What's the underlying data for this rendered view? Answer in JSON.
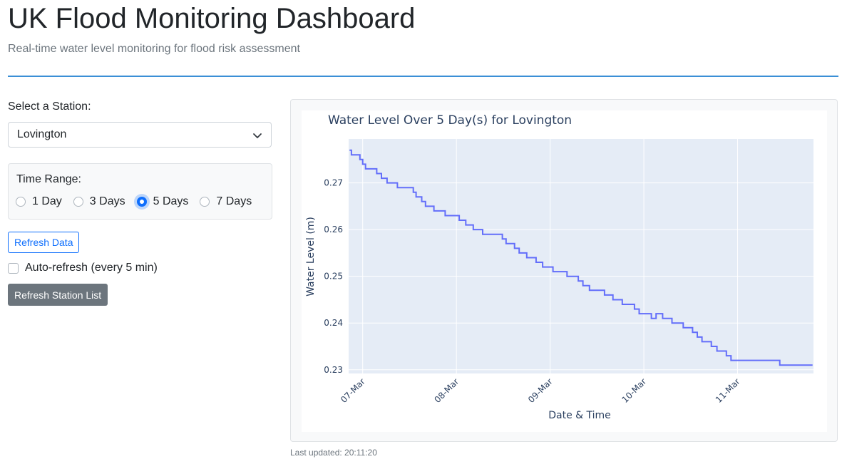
{
  "header": {
    "title": "UK Flood Monitoring Dashboard",
    "subtitle": "Real-time water level monitoring for flood risk assessment"
  },
  "controls": {
    "station_label": "Select a Station:",
    "station_value": "Lovington",
    "time_range_label": "Time Range:",
    "time_options": [
      {
        "label": "1 Day",
        "checked": false
      },
      {
        "label": "3 Days",
        "checked": false
      },
      {
        "label": "5 Days",
        "checked": true
      },
      {
        "label": "7 Days",
        "checked": false
      }
    ],
    "refresh_label": "Refresh Data",
    "auto_refresh_label": "Auto-refresh (every 5 min)",
    "auto_refresh_checked": false,
    "station_list_label": "Refresh Station List"
  },
  "colors": {
    "accent": "#0d6efd",
    "line": "#636efa",
    "plot_bg": "#e5ecf6",
    "rule": "#3a8fd6"
  },
  "footer": {
    "last_updated": "Last updated: 20:11:20"
  },
  "chart_data": {
    "type": "line",
    "title": "Water Level Over 5 Day(s) for Lovington",
    "xlabel": "Date & Time",
    "ylabel": "Water Level (m)",
    "x_tick_labels": [
      "07-Mar",
      "08-Mar",
      "09-Mar",
      "10-Mar",
      "11-Mar"
    ],
    "y_tick_labels": [
      "0.23",
      "0.24",
      "0.25",
      "0.26",
      "0.27"
    ],
    "xlim_days": [
      6.85,
      11.81
    ],
    "ylim": [
      0.2292,
      0.2794
    ],
    "grid": true,
    "series": [
      {
        "x_days": [
          6.86,
          6.88,
          6.95,
          6.97,
          7.0,
          7.03,
          7.12,
          7.15,
          7.2,
          7.26,
          7.37,
          7.54,
          7.56,
          7.57,
          7.6,
          7.63,
          7.67,
          7.76,
          7.87,
          7.88,
          7.89,
          7.95,
          8.03,
          8.1,
          8.18,
          8.28,
          8.4,
          8.49,
          8.53,
          8.62,
          8.65,
          8.67,
          8.75,
          8.85,
          8.92,
          9.03,
          9.18,
          9.22,
          9.3,
          9.35,
          9.42,
          9.58,
          9.62,
          9.67,
          9.77,
          9.9,
          9.95,
          10.05,
          10.08,
          10.13,
          10.2,
          10.3,
          10.36,
          10.42,
          10.48,
          10.52,
          10.57,
          10.62,
          10.65,
          10.72,
          10.78,
          10.88,
          10.93,
          10.98,
          11.05,
          11.1,
          11.18,
          11.28,
          11.45,
          11.52,
          11.55,
          11.6,
          11.68,
          11.73,
          11.8
        ],
        "y": [
          0.277,
          0.276,
          0.276,
          0.275,
          0.274,
          0.273,
          0.273,
          0.272,
          0.271,
          0.27,
          0.269,
          0.268,
          0.268,
          0.267,
          0.267,
          0.266,
          0.265,
          0.264,
          0.264,
          0.263,
          0.263,
          0.263,
          0.262,
          0.261,
          0.26,
          0.259,
          0.259,
          0.258,
          0.257,
          0.256,
          0.256,
          0.255,
          0.254,
          0.253,
          0.252,
          0.251,
          0.25,
          0.25,
          0.249,
          0.248,
          0.247,
          0.246,
          0.246,
          0.245,
          0.244,
          0.243,
          0.242,
          0.242,
          0.241,
          0.242,
          0.241,
          0.24,
          0.24,
          0.239,
          0.239,
          0.238,
          0.237,
          0.236,
          0.236,
          0.235,
          0.234,
          0.233,
          0.232,
          0.232,
          0.232,
          0.232,
          0.232,
          0.232,
          0.231,
          0.231,
          0.231,
          0.231,
          0.231,
          0.231,
          0.231
        ]
      }
    ]
  }
}
